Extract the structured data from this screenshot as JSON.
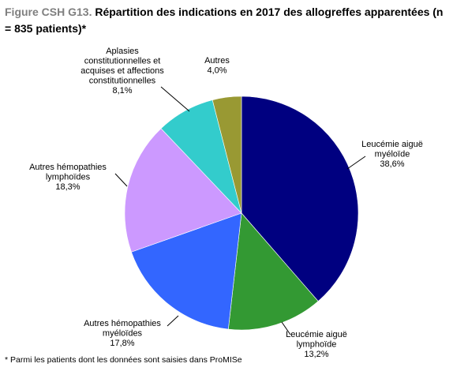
{
  "figure": {
    "title_prefix": "Figure CSH G13.",
    "title_main": " Répartition des indications en 2017 des allogreffes apparentées (n = 835 patients)*",
    "footnote": "* Parmi les patients dont les données sont saisies dans ProMISe"
  },
  "chart_data": {
    "type": "pie",
    "title": "Figure CSH G13. Répartition des indications en 2017 des allogreffes apparentées (n = 835 patients)*",
    "start": "12 o'clock",
    "direction": "clockwise",
    "slices": [
      {
        "key": "lam",
        "label_lines": [
          "Leucémie aiguë",
          "myéloïde"
        ],
        "value_label": "38,6%",
        "value": 38.6,
        "color": "#000080"
      },
      {
        "key": "lal",
        "label_lines": [
          "Leucémie aiguë",
          "lymphoïde"
        ],
        "value_label": "13,2%",
        "value": 13.2,
        "color": "#339933"
      },
      {
        "key": "amh",
        "label_lines": [
          "Autres hémopathies",
          "myéloïdes"
        ],
        "value_label": "17,8%",
        "value": 17.8,
        "color": "#3366ff"
      },
      {
        "key": "alh",
        "label_lines": [
          "Autres hémopathies",
          "lymphoïdes"
        ],
        "value_label": "18,3%",
        "value": 18.3,
        "color": "#cc99ff"
      },
      {
        "key": "apl",
        "label_lines": [
          "Aplasies",
          "constitutionnelles et",
          "acquises et affections",
          "constitutionnelles"
        ],
        "value_label": "8,1%",
        "value": 8.1,
        "color": "#33cccc"
      },
      {
        "key": "aut",
        "label_lines": [
          "Autres"
        ],
        "value_label": "4,0%",
        "value": 4.0,
        "color": "#999933"
      }
    ]
  }
}
